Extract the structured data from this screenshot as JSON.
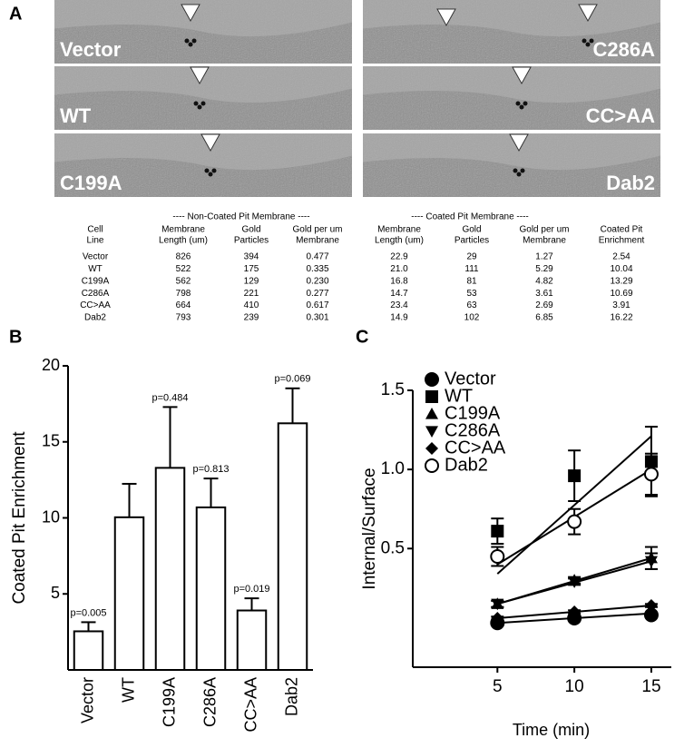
{
  "panel_labels": [
    "A",
    "B",
    "C"
  ],
  "micrographs": [
    "Vector",
    "C286A",
    "WT",
    "CC>AA",
    "C199A",
    "Dab2"
  ],
  "table": {
    "group_headers": [
      "---- Non-Coated Pit Membrane ----",
      "---- Coated Pit Membrane ----"
    ],
    "columns": [
      [
        "Cell",
        "Line"
      ],
      [
        "Membrane",
        "Length (um)"
      ],
      [
        "Gold",
        "Particles"
      ],
      [
        "Gold per um",
        "Membrane"
      ],
      [
        "Membrane",
        "Length (um)"
      ],
      [
        "Gold",
        "Particles"
      ],
      [
        "Gold per um",
        "Membrane"
      ],
      [
        "Coated Pit",
        "Enrichment"
      ]
    ],
    "rows": [
      [
        "Vector",
        "826",
        "394",
        "0.477",
        "22.9",
        "29",
        "1.27",
        "2.54"
      ],
      [
        "WT",
        "522",
        "175",
        "0.335",
        "21.0",
        "111",
        "5.29",
        "10.04"
      ],
      [
        "C199A",
        "562",
        "129",
        "0.230",
        "16.8",
        "81",
        "4.82",
        "13.29"
      ],
      [
        "C286A",
        "798",
        "221",
        "0.277",
        "14.7",
        "53",
        "3.61",
        "10.69"
      ],
      [
        "CC>AA",
        "664",
        "410",
        "0.617",
        "23.4",
        "63",
        "2.69",
        "3.91"
      ],
      [
        "Dab2",
        "793",
        "239",
        "0.301",
        "14.9",
        "102",
        "6.85",
        "16.22"
      ]
    ]
  },
  "chart_data": [
    {
      "type": "bar",
      "y_label": "Coated Pit Enrichment",
      "categories": [
        "Vector",
        "WT",
        "C199A",
        "C286A",
        "CC>AA",
        "Dab2"
      ],
      "values": [
        2.54,
        10.04,
        13.29,
        10.69,
        3.91,
        16.22
      ],
      "errors": [
        0.6,
        2.2,
        4.0,
        1.9,
        0.8,
        2.3
      ],
      "annotations": [
        "p=0.005",
        null,
        "p=0.484",
        "p=0.813",
        "p=0.019",
        "p=0.069"
      ],
      "color": "#ffffff",
      "ylim": [
        0,
        20
      ],
      "yticks": [
        5,
        10,
        15,
        20
      ]
    },
    {
      "type": "scatter",
      "x_label": "Time (min)",
      "y_label": "Internal/Surface",
      "x": [
        5,
        10,
        15
      ],
      "xlim": [
        -0.5,
        16.3
      ],
      "xticks": [
        5,
        10,
        15
      ],
      "ylim": [
        -0.25,
        1.5
      ],
      "yticks": [
        0.5,
        {
          "value": 1,
          "label": "1.0"
        },
        1.5
      ],
      "legend": "upper left",
      "series": [
        {
          "name": "Vector",
          "marker": "circle",
          "color": "#000000",
          "values": [
            0.03,
            0.06,
            0.08
          ],
          "errors": [
            0.01,
            0.01,
            0.01
          ],
          "fit": [
            0.03,
            0.09
          ]
        },
        {
          "name": "WT",
          "marker": "square",
          "color": "#000000",
          "values": [
            0.61,
            0.96,
            1.05
          ],
          "errors": [
            0.08,
            0.16,
            0.22
          ],
          "fit": [
            0.34,
            1.21
          ]
        },
        {
          "name": "C199A",
          "marker": "triangle-up",
          "color": "#000000",
          "values": [
            0.15,
            0.3,
            0.44
          ],
          "errors": [
            0.02,
            0.02,
            0.07
          ],
          "fit": [
            0.15,
            0.44
          ]
        },
        {
          "name": "C286A",
          "marker": "triangle-down",
          "color": "#000000",
          "values": [
            0.15,
            0.29,
            0.42
          ],
          "errors": [
            0.02,
            0.02,
            0.05
          ],
          "fit": [
            0.15,
            0.42
          ]
        },
        {
          "name": "CC>AA",
          "marker": "diamond",
          "color": "#000000",
          "values": [
            0.06,
            0.1,
            0.14
          ],
          "errors": [
            0.01,
            0.01,
            0.01
          ],
          "fit": [
            0.06,
            0.14
          ]
        },
        {
          "name": "Dab2",
          "marker": "open-circle",
          "color": "#000000",
          "values": [
            0.45,
            0.67,
            0.97
          ],
          "errors": [
            0.06,
            0.08,
            0.13
          ],
          "fit": [
            0.4,
            1.0
          ]
        }
      ]
    }
  ]
}
